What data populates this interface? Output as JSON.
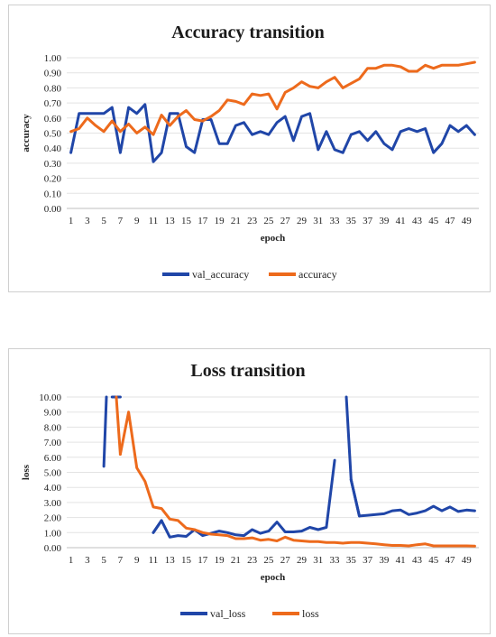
{
  "chart_data": [
    {
      "type": "line",
      "title": "Accuracy transition",
      "xlabel": "epoch",
      "ylabel": "accuracy",
      "ylim": [
        0,
        1
      ],
      "yticks": [
        "0.00",
        "0.10",
        "0.20",
        "0.30",
        "0.40",
        "0.50",
        "0.60",
        "0.70",
        "0.80",
        "0.90",
        "1.00"
      ],
      "x": [
        1,
        2,
        3,
        4,
        5,
        6,
        7,
        8,
        9,
        10,
        11,
        12,
        13,
        14,
        15,
        16,
        17,
        18,
        19,
        20,
        21,
        22,
        23,
        24,
        25,
        26,
        27,
        28,
        29,
        30,
        31,
        32,
        33,
        34,
        35,
        36,
        37,
        38,
        39,
        40,
        41,
        42,
        43,
        44,
        45,
        46,
        47,
        48,
        49,
        50
      ],
      "xtick_labels": [
        "1",
        "3",
        "5",
        "7",
        "9",
        "11",
        "13",
        "15",
        "17",
        "19",
        "21",
        "23",
        "25",
        "27",
        "29",
        "31",
        "33",
        "35",
        "37",
        "39",
        "41",
        "43",
        "45",
        "47",
        "49"
      ],
      "grid": true,
      "legend": "bottom",
      "series": [
        {
          "name": "val_accuracy",
          "color": "#2046a8",
          "values": [
            0.37,
            0.63,
            0.63,
            0.63,
            0.63,
            0.67,
            0.37,
            0.67,
            0.63,
            0.69,
            0.31,
            0.37,
            0.63,
            0.63,
            0.41,
            0.37,
            0.59,
            0.59,
            0.43,
            0.43,
            0.55,
            0.57,
            0.49,
            0.51,
            0.49,
            0.57,
            0.61,
            0.45,
            0.61,
            0.63,
            0.39,
            0.51,
            0.39,
            0.37,
            0.49,
            0.51,
            0.45,
            0.51,
            0.43,
            0.39,
            0.51,
            0.53,
            0.51,
            0.53,
            0.37,
            0.43,
            0.55,
            0.51,
            0.55,
            0.49
          ]
        },
        {
          "name": "accuracy",
          "color": "#ed6a1c",
          "values": [
            0.51,
            0.53,
            0.6,
            0.55,
            0.51,
            0.58,
            0.51,
            0.56,
            0.5,
            0.54,
            0.49,
            0.62,
            0.55,
            0.61,
            0.65,
            0.59,
            0.58,
            0.61,
            0.65,
            0.72,
            0.71,
            0.69,
            0.76,
            0.75,
            0.76,
            0.66,
            0.77,
            0.8,
            0.84,
            0.81,
            0.8,
            0.84,
            0.87,
            0.8,
            0.83,
            0.86,
            0.93,
            0.93,
            0.95,
            0.95,
            0.94,
            0.91,
            0.91,
            0.95,
            0.93,
            0.95,
            0.95,
            0.95,
            0.96,
            0.97
          ]
        }
      ]
    },
    {
      "type": "line",
      "title": "Loss transition",
      "xlabel": "epoch",
      "ylabel": "loss",
      "ylim": [
        0,
        10
      ],
      "yticks": [
        "0.00",
        "1.00",
        "2.00",
        "3.00",
        "4.00",
        "5.00",
        "6.00",
        "7.00",
        "8.00",
        "9.00",
        "10.00"
      ],
      "x": [
        1,
        2,
        3,
        4,
        5,
        6,
        7,
        8,
        9,
        10,
        11,
        12,
        13,
        14,
        15,
        16,
        17,
        18,
        19,
        20,
        21,
        22,
        23,
        24,
        25,
        26,
        27,
        28,
        29,
        30,
        31,
        32,
        33,
        34,
        35,
        36,
        37,
        38,
        39,
        40,
        41,
        42,
        43,
        44,
        45,
        46,
        47,
        48,
        49,
        50
      ],
      "xtick_labels": [
        "1",
        "3",
        "5",
        "7",
        "9",
        "11",
        "13",
        "15",
        "17",
        "19",
        "21",
        "23",
        "25",
        "27",
        "29",
        "31",
        "33",
        "35",
        "37",
        "39",
        "41",
        "43",
        "45",
        "47",
        "49"
      ],
      "grid": true,
      "legend": "bottom",
      "series": [
        {
          "name": "val_loss",
          "color": "#2046a8",
          "values": [
            null,
            null,
            null,
            null,
            5.4,
            null,
            null,
            null,
            null,
            null,
            1.0,
            1.8,
            0.7,
            0.8,
            0.75,
            1.2,
            0.8,
            0.95,
            1.1,
            1.0,
            0.85,
            0.8,
            1.2,
            0.95,
            1.1,
            1.7,
            1.05,
            1.05,
            1.1,
            1.35,
            1.2,
            1.35,
            5.8,
            14.0,
            4.5,
            2.1,
            2.15,
            2.2,
            2.25,
            2.45,
            2.5,
            2.2,
            2.3,
            2.45,
            2.75,
            2.45,
            2.7,
            2.4,
            2.5,
            2.45
          ],
          "offscale_segments": [
            [
              4,
              5
            ],
            [
              5,
              6
            ],
            [
              10,
              11
            ],
            [
              33,
              34
            ],
            [
              34,
              35
            ]
          ],
          "offscale_points": {
            "6": 50,
            "10": 50
          }
        },
        {
          "name": "loss",
          "color": "#ed6a1c",
          "values": [
            null,
            null,
            null,
            null,
            null,
            14.0,
            6.2,
            9.0,
            5.3,
            4.4,
            2.7,
            2.6,
            1.9,
            1.8,
            1.3,
            1.2,
            1.0,
            0.9,
            0.85,
            0.8,
            0.6,
            0.6,
            0.65,
            0.5,
            0.55,
            0.45,
            0.7,
            0.5,
            0.45,
            0.4,
            0.4,
            0.35,
            0.35,
            0.3,
            0.35,
            0.35,
            0.3,
            0.25,
            0.2,
            0.15,
            0.15,
            0.12,
            0.2,
            0.25,
            0.12,
            0.12,
            0.12,
            0.12,
            0.12,
            0.1
          ],
          "offscale_segments": [
            [
              5,
              6
            ]
          ]
        }
      ]
    }
  ]
}
